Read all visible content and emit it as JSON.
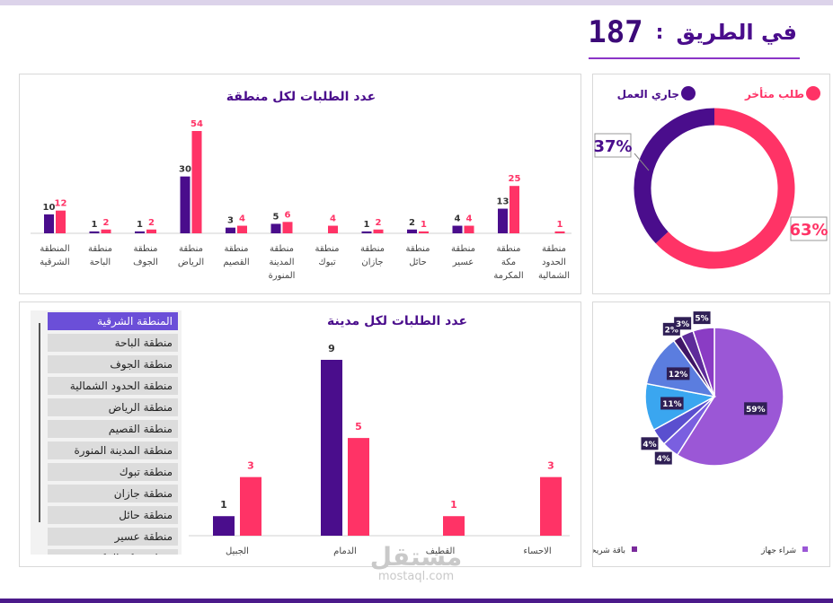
{
  "header": {
    "label": "في الطريق",
    "colon": ":",
    "value": "187"
  },
  "colors": {
    "purple": "#4a0d8c",
    "pink": "#ff3366",
    "dark": "#3c0a78"
  },
  "region_chart": {
    "title": "عدد الطلبات لكل منطقة",
    "regions": [
      {
        "line1": "المنطقة",
        "line2": "الشرقية",
        "line3": "",
        "a": 10,
        "b": 12
      },
      {
        "line1": "منطقة",
        "line2": "الباحة",
        "line3": "",
        "a": 1,
        "b": 2
      },
      {
        "line1": "منطقة",
        "line2": "الجوف",
        "line3": "",
        "a": 1,
        "b": 2
      },
      {
        "line1": "منطقة",
        "line2": "الرياض",
        "line3": "",
        "a": 30,
        "b": 54
      },
      {
        "line1": "منطقة",
        "line2": "القصيم",
        "line3": "",
        "a": 3,
        "b": 4
      },
      {
        "line1": "منطقة",
        "line2": "المدينة",
        "line3": "المنورة",
        "a": 5,
        "b": 6
      },
      {
        "line1": "منطقة",
        "line2": "تبوك",
        "line3": "",
        "a": null,
        "b": 4
      },
      {
        "line1": "منطقة",
        "line2": "جازان",
        "line3": "",
        "a": 1,
        "b": 2
      },
      {
        "line1": "منطقة",
        "line2": "حائل",
        "line3": "",
        "a": 2,
        "b": 1
      },
      {
        "line1": "منطقة",
        "line2": "عسير",
        "line3": "",
        "a": 4,
        "b": 4
      },
      {
        "line1": "منطقة",
        "line2": "مكة",
        "line3": "المكرمة",
        "a": 13,
        "b": 25
      },
      {
        "line1": "منطقة",
        "line2": "الحدود",
        "line3": "الشمالية",
        "a": null,
        "b": 1
      }
    ]
  },
  "donut": {
    "legend": [
      {
        "label": "طلب متأخر",
        "color": "#ff3366"
      },
      {
        "label": "جاري العمل",
        "color": "#4a0d8c"
      }
    ],
    "slices": [
      {
        "label": "63%",
        "value": 63,
        "color": "#ff3366"
      },
      {
        "label": "37%",
        "value": 37,
        "color": "#4a0d8c"
      }
    ]
  },
  "slicer": {
    "selected": 0,
    "items": [
      "المنطقة الشرقية",
      "منطقة الباحة",
      "منطقة الجوف",
      "منطقة الحدود الشمالية",
      "منطقة الرياض",
      "منطقة القصيم",
      "منطقة المدينة المنورة",
      "منطقة تبوك",
      "منطقة جازان",
      "منطقة حائل",
      "منطقة عسير",
      "منطقة مكة المكرمة"
    ]
  },
  "city_chart": {
    "title": "عدد الطلبات لكل مدينة",
    "cities": [
      {
        "name": "الجبيل",
        "a": 1,
        "b": 3
      },
      {
        "name": "الدمام",
        "a": 9,
        "b": 5
      },
      {
        "name": "القطيف",
        "a": null,
        "b": 1
      },
      {
        "name": "الاحساء",
        "a": null,
        "b": 3
      }
    ]
  },
  "pie": {
    "slices": [
      {
        "label": "59%",
        "value": 59,
        "color": "#9b57d6"
      },
      {
        "label": "4%",
        "value": 4,
        "color": "#7a5fe0"
      },
      {
        "label": "4%",
        "value": 4,
        "color": "#5a4fcf"
      },
      {
        "label": "11%",
        "value": 11,
        "color": "#3aa6f0"
      },
      {
        "label": "12%",
        "value": 12,
        "color": "#5b7ddf"
      },
      {
        "label": "2%",
        "value": 2,
        "color": "#3f1566"
      },
      {
        "label": "3%",
        "value": 3,
        "color": "#5e2b9a"
      },
      {
        "label": "5%",
        "value": 5,
        "color": "#8a3cc4"
      }
    ],
    "legend": [
      {
        "label": "شراء جهاز",
        "color": "#9b57d6"
      },
      {
        "label": "باقة شريحة بيانات مع جهاز",
        "color": "#7a2a9c"
      }
    ]
  },
  "watermark": {
    "ar": "مستقل",
    "en": "mostaql.com"
  }
}
